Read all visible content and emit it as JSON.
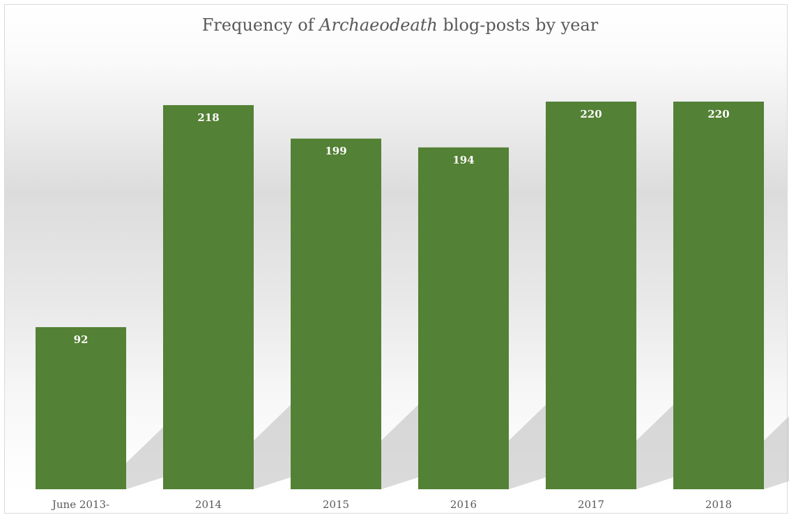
{
  "chart_data": {
    "type": "bar",
    "title_parts": [
      {
        "text": "Frequency of ",
        "italic": false
      },
      {
        "text": "Archaeodeath",
        "italic": true
      },
      {
        "text": " blog-posts by year",
        "italic": false
      }
    ],
    "categories": [
      "June 2013-",
      "2014",
      "2015",
      "2016",
      "2017",
      "2018"
    ],
    "values": [
      92,
      218,
      199,
      194,
      220,
      220
    ],
    "data_labels": [
      "92",
      "218",
      "199",
      "194",
      "220",
      "220"
    ],
    "ylim": [
      0,
      220
    ],
    "grid": false,
    "legend": "none",
    "bar_color": "#538135",
    "label_color": "#ffffff"
  }
}
